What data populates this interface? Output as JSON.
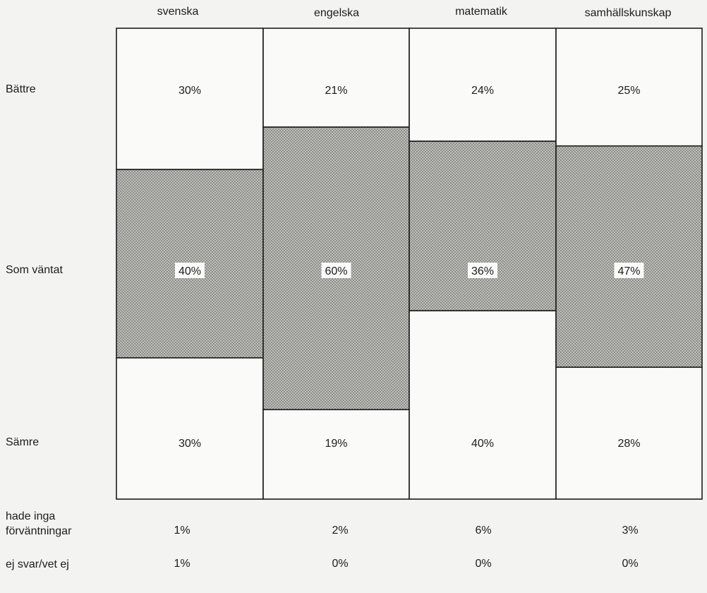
{
  "chart_data": {
    "type": "bar",
    "stacked": true,
    "normalized": true,
    "categories": [
      "svenska",
      "engelska",
      "matematik",
      "samhällskunskap"
    ],
    "series": [
      {
        "name": "Bättre",
        "values": [
          30,
          21,
          24,
          25
        ],
        "fill": "none"
      },
      {
        "name": "Som väntat",
        "values": [
          40,
          60,
          36,
          47
        ],
        "fill": "dotted-grey"
      },
      {
        "name": "Sämre",
        "values": [
          30,
          19,
          40,
          28
        ],
        "fill": "none"
      }
    ],
    "extra_rows": [
      {
        "name": "hade inga förväntningar",
        "label_lines": [
          "hade inga",
          "förväntningar"
        ],
        "values": [
          "1%",
          "2%",
          "6%",
          "3%"
        ]
      },
      {
        "name": "ej svar/vet ej",
        "label_lines": [
          "ej svar/vet ej"
        ],
        "values": [
          "1%",
          "0%",
          "0%",
          "0%"
        ]
      }
    ],
    "value_format": "percent",
    "title": "",
    "xlabel": "",
    "ylabel": "",
    "ylim": [
      0,
      100
    ],
    "grid": false,
    "legend": "none (row labels on left)"
  },
  "colors": {
    "background": "#f3f3f2",
    "fill_plain": "#fafaf8",
    "fill_shaded": "#b9b9b6",
    "dots": "#6e6e6b",
    "border": "#1c1c1c"
  }
}
